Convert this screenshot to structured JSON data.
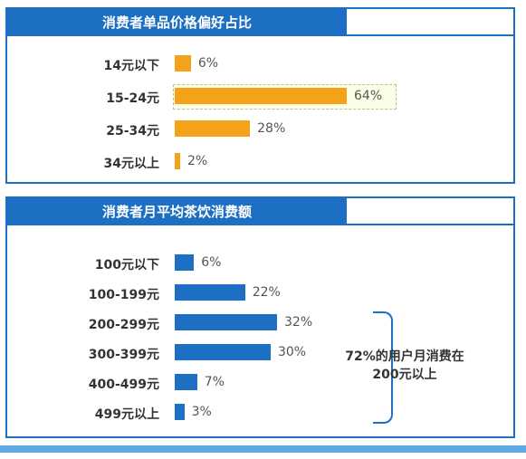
{
  "colors": {
    "accent_blue": "#1c6fc2",
    "orange": "#f5a21b",
    "band": "#62a8e3"
  },
  "chart_data": [
    {
      "type": "bar",
      "orientation": "horizontal",
      "title": "消费者单品价格偏好占比",
      "categories": [
        "14元以下",
        "15-24元",
        "25-34元",
        "34元以上"
      ],
      "values": [
        6,
        64,
        28,
        2
      ],
      "value_labels": [
        "6%",
        "64%",
        "28%",
        "2%"
      ],
      "unit": "%",
      "highlighted_category": "15-24元",
      "color": "#f5a21b"
    },
    {
      "type": "bar",
      "orientation": "horizontal",
      "title": "消费者月平均茶饮消费额",
      "categories": [
        "100元以下",
        "100-199元",
        "200-299元",
        "300-399元",
        "400-499元",
        "499元以上"
      ],
      "values": [
        6,
        22,
        32,
        30,
        7,
        3
      ],
      "value_labels": [
        "6%",
        "22%",
        "32%",
        "30%",
        "7%",
        "3%"
      ],
      "unit": "%",
      "annotation": {
        "line1": "72%的用户月消费在",
        "line2": "200元以上"
      },
      "color": "#1c6fc2"
    }
  ]
}
